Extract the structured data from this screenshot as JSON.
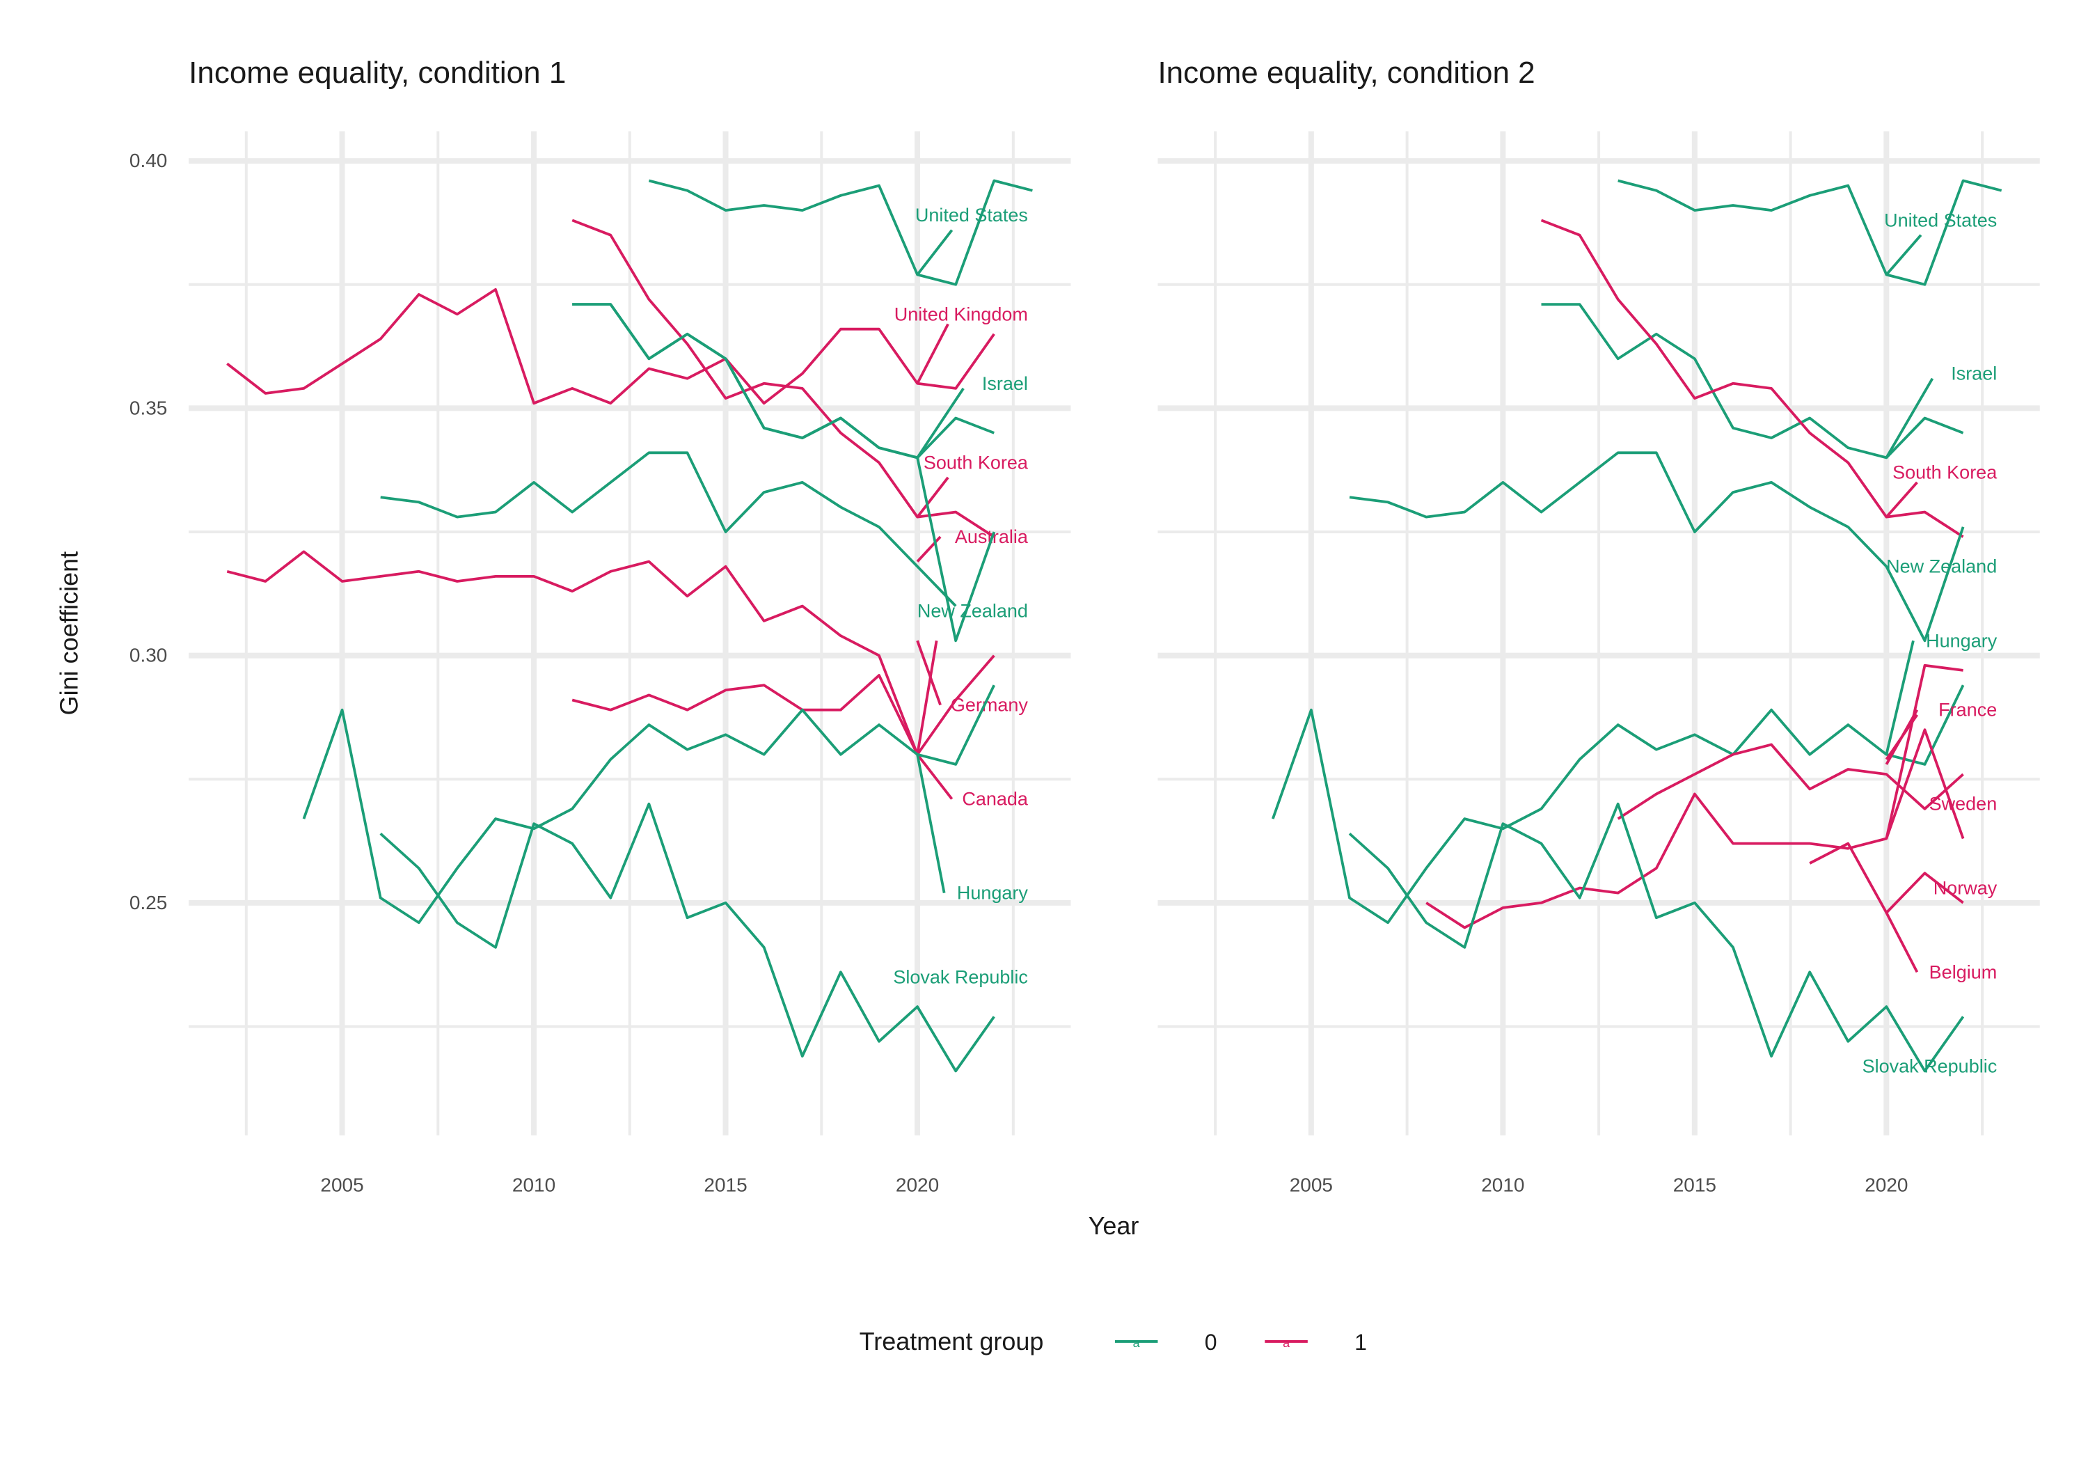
{
  "chart_data": {
    "type": "line",
    "xlabel": "Year",
    "ylabel": "Gini coefficient",
    "xlim": [
      2001,
      2024
    ],
    "ylim": [
      0.203,
      0.406
    ],
    "x_ticks": [
      2005,
      2010,
      2015,
      2020
    ],
    "y_ticks": [
      0.25,
      0.3,
      0.35,
      0.4
    ],
    "grid": true,
    "legend": {
      "position": "bottom",
      "title": "Treatment group",
      "key_glyph": "a",
      "items": [
        {
          "label": "0",
          "color": "#1b9e77"
        },
        {
          "label": "1",
          "color": "#d81b60"
        }
      ]
    },
    "colors": {
      "0": "#1b9e77",
      "1": "#d81b60"
    },
    "panels": [
      {
        "title": "Income equality, condition 1",
        "series": [
          {
            "name": "United States",
            "group": "0",
            "x": [
              2013,
              2014,
              2015,
              2016,
              2017,
              2018,
              2019,
              2020,
              2021,
              2022,
              2023
            ],
            "y": [
              0.396,
              0.394,
              0.39,
              0.391,
              0.39,
              0.393,
              0.395,
              0.377,
              0.375,
              0.396,
              0.394
            ],
            "label_y": 0.389,
            "leader": [
              [
                2020,
                0.377
              ],
              [
                2020.9,
                0.386
              ]
            ]
          },
          {
            "name": "United Kingdom",
            "group": "1",
            "x": [
              2002,
              2003,
              2004,
              2005,
              2006,
              2007,
              2008,
              2009,
              2010,
              2011,
              2012,
              2013,
              2014,
              2015,
              2016,
              2017,
              2018,
              2019,
              2020,
              2021,
              2022
            ],
            "y": [
              0.359,
              0.353,
              0.354,
              0.359,
              0.364,
              0.373,
              0.369,
              0.374,
              0.351,
              0.354,
              0.351,
              0.358,
              0.356,
              0.36,
              0.351,
              0.357,
              0.366,
              0.366,
              0.355,
              0.354,
              0.365
            ],
            "label_y": 0.369,
            "leader": [
              [
                2020,
                0.355
              ],
              [
                2020.8,
                0.367
              ]
            ]
          },
          {
            "name": "Israel",
            "group": "0",
            "x": [
              2011,
              2012,
              2013,
              2014,
              2015,
              2016,
              2017,
              2018,
              2019,
              2020,
              2021,
              2022
            ],
            "y": [
              0.371,
              0.371,
              0.36,
              0.365,
              0.36,
              0.346,
              0.344,
              0.348,
              0.342,
              0.34,
              0.348,
              0.345
            ],
            "label_y": 0.355,
            "leader": [
              [
                2020,
                0.34
              ],
              [
                2021.2,
                0.354
              ]
            ]
          },
          {
            "name": "South Korea",
            "group": "1",
            "x": [
              2011,
              2012,
              2013,
              2014,
              2015,
              2016,
              2017,
              2018,
              2019,
              2020,
              2021,
              2022
            ],
            "y": [
              0.388,
              0.385,
              0.372,
              0.363,
              0.352,
              0.355,
              0.354,
              0.345,
              0.339,
              0.328,
              0.329,
              0.324
            ],
            "label_y": 0.339,
            "leader": [
              [
                2020,
                0.328
              ],
              [
                2020.8,
                0.336
              ]
            ]
          },
          {
            "name": "Australia",
            "group": "1",
            "x": [
              2020,
              2020.6
            ],
            "y": [
              0.319,
              0.324
            ],
            "label_y": 0.324,
            "leader": null
          },
          {
            "name": "New Zealand",
            "group": "0",
            "x": [
              2006,
              2007,
              2008,
              2009,
              2010,
              2011,
              2012,
              2013,
              2014,
              2015,
              2016,
              2017,
              2018,
              2019,
              2020,
              2021
            ],
            "y": [
              0.332,
              0.331,
              0.328,
              0.329,
              0.335,
              0.329,
              0.335,
              0.341,
              0.341,
              0.325,
              0.333,
              0.335,
              0.33,
              0.326,
              0.318,
              0.31
            ],
            "label_y": 0.309,
            "leader": null
          },
          {
            "name": "Germany",
            "group": "1",
            "x": [
              2002,
              2003,
              2004,
              2005,
              2006,
              2007,
              2008,
              2009,
              2010,
              2011,
              2012,
              2013,
              2014,
              2015,
              2016,
              2017,
              2018,
              2019,
              2020,
              2020.5
            ],
            "y": [
              0.317,
              0.315,
              0.321,
              0.315,
              0.316,
              0.317,
              0.315,
              0.316,
              0.316,
              0.313,
              0.317,
              0.319,
              0.312,
              0.318,
              0.307,
              0.31,
              0.304,
              0.3,
              0.28,
              0.303
            ],
            "label_y": 0.29,
            "leader": [
              [
                2020,
                0.303
              ],
              [
                2020.6,
                0.29
              ]
            ]
          },
          {
            "name": "Canada",
            "group": "1",
            "x": [
              2011,
              2012,
              2013,
              2014,
              2015,
              2016,
              2017,
              2018,
              2019,
              2020,
              2021,
              2022
            ],
            "y": [
              0.291,
              0.289,
              0.292,
              0.289,
              0.293,
              0.294,
              0.289,
              0.289,
              0.296,
              0.28,
              0.291,
              0.3
            ],
            "label_y": 0.271,
            "leader": [
              [
                2020,
                0.28
              ],
              [
                2020.9,
                0.271
              ]
            ]
          },
          {
            "name": "Hungary",
            "group": "0",
            "x": [
              2011,
              2012,
              2013,
              2014,
              2015,
              2016,
              2017,
              2018,
              2019,
              2020,
              2021,
              2022
            ],
            "y": [
              0.371,
              0.371,
              0.36,
              0.365,
              0.36,
              0.346,
              0.344,
              0.348,
              0.342,
              0.34,
              0.303,
              0.325
            ],
            "label_y": 0.252,
            "leader": [
              [
                2020,
                0.28
              ],
              [
                2020.7,
                0.252
              ]
            ],
            "extra": [
              [
                2004,
                0.267
              ],
              [
                2005,
                0.289
              ],
              [
                2006,
                0.251
              ],
              [
                2007,
                0.246
              ],
              [
                2008,
                0.257
              ],
              [
                2009,
                0.267
              ],
              [
                2010,
                0.265
              ],
              [
                2011,
                0.269
              ],
              [
                2012,
                0.279
              ],
              [
                2013,
                0.286
              ],
              [
                2014,
                0.281
              ],
              [
                2015,
                0.284
              ],
              [
                2016,
                0.28
              ],
              [
                2017,
                0.289
              ],
              [
                2018,
                0.28
              ],
              [
                2019,
                0.286
              ],
              [
                2020,
                0.28
              ],
              [
                2021,
                0.278
              ],
              [
                2022,
                0.294
              ]
            ]
          },
          {
            "name": "Slovak Republic",
            "group": "0",
            "x": [
              2006,
              2007,
              2008,
              2009,
              2010,
              2011,
              2012,
              2013,
              2014,
              2015,
              2016,
              2017,
              2018,
              2019,
              2020,
              2021,
              2022
            ],
            "y": [
              0.264,
              0.257,
              0.246,
              0.241,
              0.266,
              0.262,
              0.251,
              0.27,
              0.247,
              0.25,
              0.241,
              0.219,
              0.236,
              0.222,
              0.229,
              0.216,
              0.227
            ],
            "label_y": 0.235,
            "leader": null
          }
        ]
      },
      {
        "title": "Income equality, condition 2",
        "series": [
          {
            "name": "United States",
            "group": "0",
            "x": [
              2013,
              2014,
              2015,
              2016,
              2017,
              2018,
              2019,
              2020,
              2021,
              2022,
              2023
            ],
            "y": [
              0.396,
              0.394,
              0.39,
              0.391,
              0.39,
              0.393,
              0.395,
              0.377,
              0.375,
              0.396,
              0.394
            ],
            "label_y": 0.388,
            "leader": [
              [
                2020,
                0.377
              ],
              [
                2020.9,
                0.385
              ]
            ]
          },
          {
            "name": "Israel",
            "group": "0",
            "x": [
              2011,
              2012,
              2013,
              2014,
              2015,
              2016,
              2017,
              2018,
              2019,
              2020,
              2021,
              2022
            ],
            "y": [
              0.371,
              0.371,
              0.36,
              0.365,
              0.36,
              0.346,
              0.344,
              0.348,
              0.342,
              0.34,
              0.348,
              0.345
            ],
            "label_y": 0.357,
            "leader": [
              [
                2020,
                0.34
              ],
              [
                2021.2,
                0.356
              ]
            ]
          },
          {
            "name": "South Korea",
            "group": "1",
            "x": [
              2011,
              2012,
              2013,
              2014,
              2015,
              2016,
              2017,
              2018,
              2019,
              2020,
              2021,
              2022
            ],
            "y": [
              0.388,
              0.385,
              0.372,
              0.363,
              0.352,
              0.355,
              0.354,
              0.345,
              0.339,
              0.328,
              0.329,
              0.324
            ],
            "label_y": 0.337,
            "leader": [
              [
                2020,
                0.328
              ],
              [
                2020.8,
                0.335
              ]
            ]
          },
          {
            "name": "New Zealand",
            "group": "0",
            "x": [
              2006,
              2007,
              2008,
              2009,
              2010,
              2011,
              2012,
              2013,
              2014,
              2015,
              2016,
              2017,
              2018,
              2019,
              2020,
              2021,
              2022
            ],
            "y": [
              0.332,
              0.331,
              0.328,
              0.329,
              0.335,
              0.329,
              0.335,
              0.341,
              0.341,
              0.325,
              0.333,
              0.335,
              0.33,
              0.326,
              0.318,
              0.303,
              0.326
            ],
            "label_y": 0.318,
            "leader": null
          },
          {
            "name": "Hungary",
            "group": "0",
            "x": [
              2004,
              2005,
              2006,
              2007,
              2008,
              2009,
              2010,
              2011,
              2012,
              2013,
              2014,
              2015,
              2016,
              2017,
              2018,
              2019,
              2020,
              2021,
              2022
            ],
            "y": [
              0.267,
              0.289,
              0.251,
              0.246,
              0.257,
              0.267,
              0.265,
              0.269,
              0.279,
              0.286,
              0.281,
              0.284,
              0.28,
              0.289,
              0.28,
              0.286,
              0.28,
              0.278,
              0.294
            ],
            "label_y": 0.303,
            "leader": [
              [
                2020,
                0.28
              ],
              [
                2020.7,
                0.303
              ]
            ]
          },
          {
            "name": "France",
            "group": "1",
            "x": [
              2013,
              2014,
              2015,
              2016,
              2017,
              2018,
              2019,
              2020,
              2021,
              2022
            ],
            "y": [
              0.267,
              0.272,
              0.276,
              0.28,
              0.282,
              0.273,
              0.277,
              0.276,
              0.269,
              0.276
            ],
            "label_y": 0.289,
            "leader": [
              [
                2020,
                0.278
              ],
              [
                2020.8,
                0.289
              ]
            ]
          },
          {
            "name": "Sweden",
            "group": "1",
            "x": [
              2008,
              2009,
              2010,
              2011,
              2012,
              2013,
              2014,
              2015,
              2016,
              2017,
              2018,
              2019,
              2020,
              2021,
              2022
            ],
            "y": [
              0.25,
              0.245,
              0.249,
              0.25,
              0.253,
              0.252,
              0.257,
              0.272,
              0.262,
              0.262,
              0.262,
              0.261,
              0.263,
              0.298,
              0.297
            ],
            "label_y": 0.27,
            "leader": [
              [
                2020,
                0.279
              ],
              [
                2020.8,
                0.288
              ]
            ]
          },
          {
            "name": "Norway",
            "group": "1",
            "x": [
              2018,
              2019,
              2020,
              2021,
              2022
            ],
            "y": [
              0.258,
              0.262,
              0.248,
              0.256,
              0.25
            ],
            "label_y": 0.253,
            "leader": null
          },
          {
            "name": "Belgium",
            "group": "1",
            "x": [
              2020,
              2021,
              2022
            ],
            "y": [
              0.263,
              0.285,
              0.263
            ],
            "label_y": 0.236,
            "leader": [
              [
                2020,
                0.248
              ],
              [
                2020.8,
                0.236
              ]
            ]
          },
          {
            "name": "Slovak Republic",
            "group": "0",
            "x": [
              2006,
              2007,
              2008,
              2009,
              2010,
              2011,
              2012,
              2013,
              2014,
              2015,
              2016,
              2017,
              2018,
              2019,
              2020,
              2021,
              2022
            ],
            "y": [
              0.264,
              0.257,
              0.246,
              0.241,
              0.266,
              0.262,
              0.251,
              0.27,
              0.247,
              0.25,
              0.241,
              0.219,
              0.236,
              0.222,
              0.229,
              0.216,
              0.227
            ],
            "label_y": 0.217,
            "leader": null
          }
        ]
      }
    ]
  }
}
